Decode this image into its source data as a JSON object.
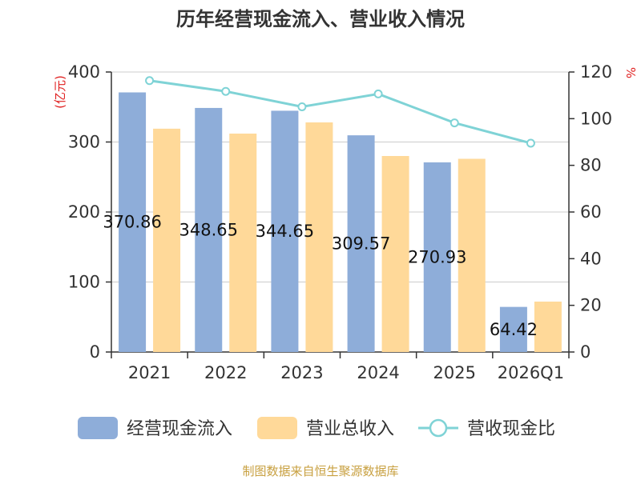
{
  "chart_data": {
    "type": "bar",
    "title": "历年经营现金流入、营业收入情况",
    "categories": [
      "2021",
      "2022",
      "2023",
      "2024",
      "2025",
      "2026Q1"
    ],
    "series": [
      {
        "name": "经营现金流入",
        "kind": "bar",
        "axis": "left",
        "color": "#8eadd9",
        "values": [
          370.86,
          348.65,
          344.65,
          309.57,
          270.93,
          64.42
        ],
        "labels": [
          "370.86",
          "348.65",
          "344.65",
          "309.57",
          "270.93",
          "64.42"
        ]
      },
      {
        "name": "营业总收入",
        "kind": "bar",
        "axis": "left",
        "color": "#ffd999",
        "values": [
          319,
          312,
          328,
          280,
          276,
          72
        ]
      },
      {
        "name": "营收现金比",
        "kind": "line",
        "axis": "right",
        "color": "#7fd3d6",
        "values": [
          116.3,
          111.7,
          105.1,
          110.6,
          98.2,
          89.5
        ]
      }
    ],
    "y_left": {
      "label": "(亿元)",
      "min": 0,
      "max": 400,
      "ticks": [
        0,
        100,
        200,
        300,
        400
      ]
    },
    "y_right": {
      "label": "%",
      "min": 0,
      "max": 120,
      "ticks": [
        0,
        20,
        40,
        60,
        80,
        100,
        120
      ]
    },
    "grid": true,
    "legend_position": "bottom"
  },
  "legend": {
    "items": [
      "经营现金流入",
      "营业总收入",
      "营收现金比"
    ]
  },
  "footer": "制图数据来自恒生聚源数据库"
}
